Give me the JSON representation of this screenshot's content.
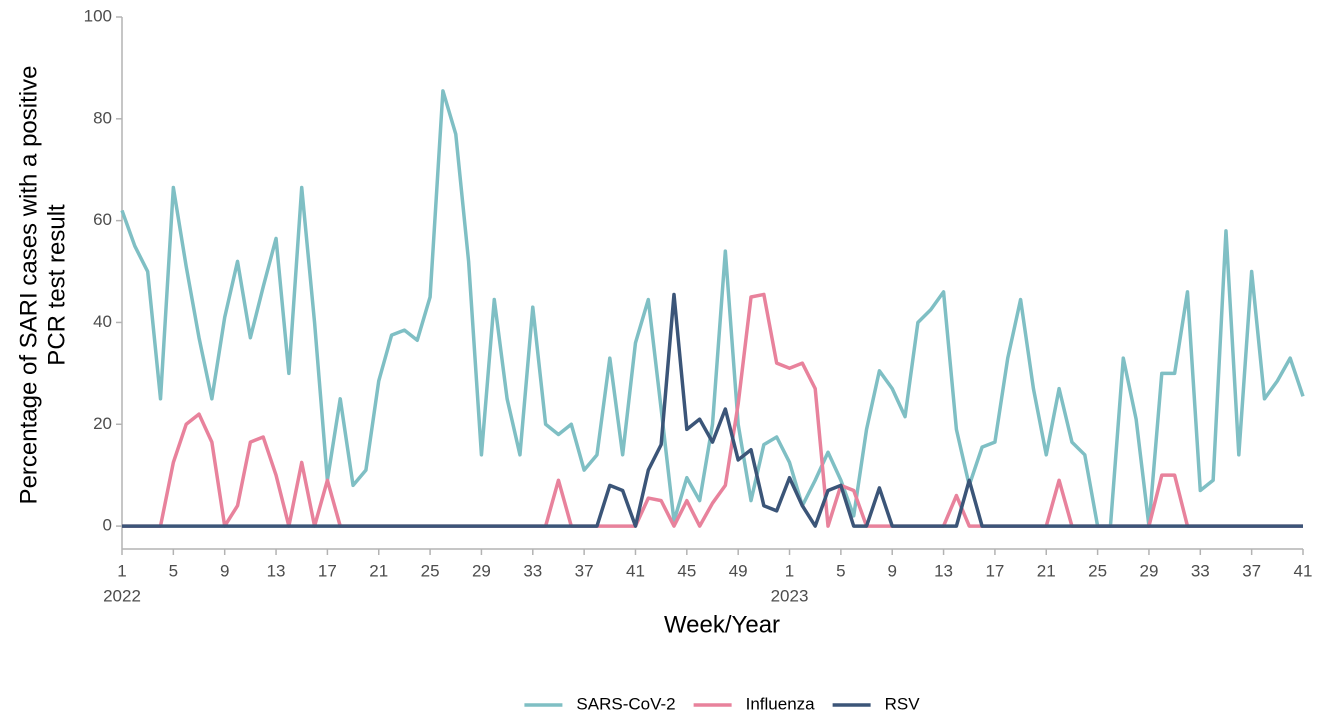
{
  "chart_data": {
    "type": "line",
    "y_label": [
      "Percentage of SARI cases with a positive",
      "PCR test result"
    ],
    "x_label": "Week/Year",
    "categories": [
      "1",
      null,
      null,
      null,
      "5",
      null,
      null,
      null,
      "9",
      null,
      null,
      null,
      "13",
      null,
      null,
      null,
      "17",
      null,
      null,
      null,
      "21",
      null,
      null,
      null,
      "25",
      null,
      null,
      null,
      "29",
      null,
      null,
      null,
      "33",
      null,
      null,
      null,
      "37",
      null,
      null,
      null,
      "41",
      null,
      null,
      null,
      "45",
      null,
      null,
      null,
      "49",
      null,
      null,
      null,
      "1",
      null,
      null,
      null,
      "5",
      null,
      null,
      null,
      "9",
      null,
      null,
      null,
      "13",
      null,
      null,
      null,
      "17",
      null,
      null,
      null,
      "21",
      null,
      null,
      null,
      "25",
      null,
      null,
      null,
      "29",
      null,
      null,
      null,
      "33",
      null,
      null,
      null,
      "37",
      null,
      null,
      null,
      "41"
    ],
    "x_groups": [
      {
        "label": "2022",
        "start": 0
      },
      {
        "label": "2023",
        "start": 52
      }
    ],
    "ylim": [
      -4.5,
      100
    ],
    "yticks": [
      0,
      20,
      40,
      60,
      80,
      100
    ],
    "grid": false,
    "legend": "bottom",
    "series": [
      {
        "name": "SARS-CoV-2",
        "color": "#7fbfc4",
        "values": [
          62,
          55,
          50,
          25,
          66.5,
          51,
          37,
          25,
          41,
          52,
          37,
          47,
          56.5,
          30,
          66.5,
          40,
          9,
          25,
          8,
          11,
          28.5,
          37.5,
          38.5,
          36.5,
          45,
          85.5,
          77,
          52,
          14,
          44.5,
          25,
          14,
          43,
          20,
          18,
          20,
          11,
          14,
          33,
          14,
          36,
          44.5,
          23,
          1,
          9.5,
          5,
          20,
          54,
          20,
          5,
          16,
          17.5,
          12.5,
          4,
          9,
          14.5,
          9,
          2,
          19,
          30.5,
          27,
          21.5,
          40,
          42.5,
          46,
          19,
          8,
          15.5,
          16.5,
          33,
          44.5,
          27,
          14,
          27,
          16.5,
          14,
          0,
          0,
          33,
          21,
          0,
          30,
          30,
          46,
          7,
          9,
          58,
          14,
          50,
          25,
          28.5,
          33,
          25.5
        ]
      },
      {
        "name": "Influenza",
        "color": "#e8829c",
        "values": [
          0,
          0,
          0,
          0,
          12.5,
          20,
          22,
          16.5,
          0,
          4,
          16.5,
          17.5,
          10,
          0,
          12.5,
          0,
          9,
          0,
          0,
          0,
          0,
          0,
          0,
          0,
          0,
          0,
          0,
          0,
          0,
          0,
          0,
          0,
          0,
          0,
          9,
          0,
          0,
          0,
          0,
          0,
          0,
          5.5,
          5,
          0,
          5,
          0,
          4.5,
          8,
          24,
          45,
          45.5,
          32,
          31,
          32,
          27,
          0,
          8,
          7,
          0,
          0,
          0,
          0,
          0,
          0,
          0,
          6,
          0,
          0,
          0,
          0,
          0,
          0,
          0,
          9,
          0,
          0,
          0,
          0,
          0,
          0,
          0,
          10,
          10,
          0,
          0,
          0,
          0,
          0,
          0,
          0,
          0,
          0,
          0
        ]
      },
      {
        "name": "RSV",
        "color": "#3b5578",
        "values": [
          0,
          0,
          0,
          0,
          0,
          0,
          0,
          0,
          0,
          0,
          0,
          0,
          0,
          0,
          0,
          0,
          0,
          0,
          0,
          0,
          0,
          0,
          0,
          0,
          0,
          0,
          0,
          0,
          0,
          0,
          0,
          0,
          0,
          0,
          0,
          0,
          0,
          0,
          8,
          7,
          0,
          11,
          16,
          45.5,
          19,
          21,
          16.5,
          23,
          13,
          15,
          4,
          3,
          9.5,
          4,
          0,
          7,
          8,
          0,
          0,
          7.5,
          0,
          0,
          0,
          0,
          0,
          0,
          9,
          0,
          0,
          0,
          0,
          0,
          0,
          0,
          0,
          0,
          0,
          0,
          0,
          0,
          0,
          0,
          0,
          0,
          0,
          0,
          0,
          0,
          0,
          0,
          0,
          0,
          0
        ]
      }
    ]
  }
}
